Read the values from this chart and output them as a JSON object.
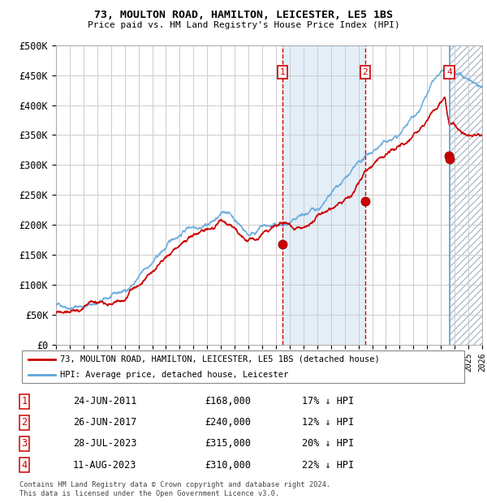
{
  "title1": "73, MOULTON ROAD, HAMILTON, LEICESTER, LE5 1BS",
  "title2": "Price paid vs. HM Land Registry's House Price Index (HPI)",
  "ylabel_ticks": [
    "£0",
    "£50K",
    "£100K",
    "£150K",
    "£200K",
    "£250K",
    "£300K",
    "£350K",
    "£400K",
    "£450K",
    "£500K"
  ],
  "ytick_vals": [
    0,
    50000,
    100000,
    150000,
    200000,
    250000,
    300000,
    350000,
    400000,
    450000,
    500000
  ],
  "xlim": [
    1995,
    2026
  ],
  "ylim": [
    0,
    500000
  ],
  "sale_dates": [
    2011.48,
    2017.48,
    2023.57,
    2023.61
  ],
  "sale_prices": [
    168000,
    240000,
    315000,
    310000
  ],
  "sale_labels": [
    "1",
    "2",
    "3",
    "4"
  ],
  "hpi_color": "#5ba3d9",
  "sale_color": "#cc0000",
  "vline_color": "#cc0000",
  "legend_sale_label": "73, MOULTON ROAD, HAMILTON, LEICESTER, LE5 1BS (detached house)",
  "legend_hpi_label": "HPI: Average price, detached house, Leicester",
  "table_rows": [
    [
      "1",
      "24-JUN-2011",
      "£168,000",
      "17% ↓ HPI"
    ],
    [
      "2",
      "26-JUN-2017",
      "£240,000",
      "12% ↓ HPI"
    ],
    [
      "3",
      "28-JUL-2023",
      "£315,000",
      "20% ↓ HPI"
    ],
    [
      "4",
      "11-AUG-2023",
      "£310,000",
      "22% ↓ HPI"
    ]
  ],
  "footnote": "Contains HM Land Registry data © Crown copyright and database right 2024.\nThis data is licensed under the Open Government Licence v3.0.",
  "shaded_blue_start": 2011.48,
  "shaded_blue_end": 2017.48,
  "shaded_hatch_start": 2023.61,
  "shaded_hatch_end": 2026.0
}
